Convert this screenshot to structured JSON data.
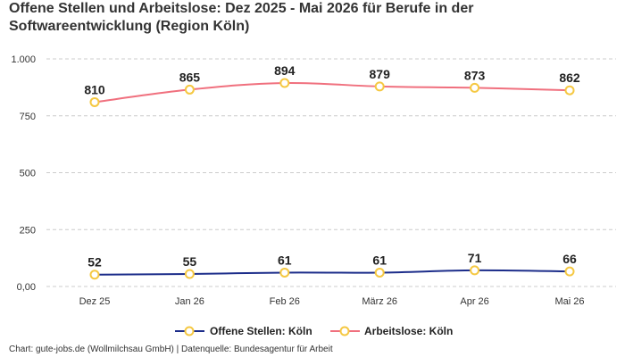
{
  "title": "Offene Stellen und Arbeitslose: Dez 2025 - Mai 2026 für Berufe in der Softwareentwicklung (Region Köln)",
  "footer": "Chart: gute-jobs.de (Wollmilchsau GmbH) | Datenquelle: Bundesagentur für Arbeit",
  "colors": {
    "offene_stellen": "#1c2d8a",
    "arbeitslose": "#f0707e",
    "marker_stroke": "#f5c842",
    "grid": "#cccccc"
  },
  "chart_data": {
    "type": "line",
    "title": "Offene Stellen und Arbeitslose: Dez 2025 - Mai 2026 für Berufe in der Softwareentwicklung (Region Köln)",
    "xlabel": "",
    "ylabel": "",
    "categories": [
      "Dez 25",
      "Jan 26",
      "Feb 26",
      "März 26",
      "Apr 26",
      "Mai 26"
    ],
    "ylim": [
      0,
      1000
    ],
    "yticks": [
      0,
      250,
      500,
      750,
      1000
    ],
    "ytick_labels": [
      "0,00",
      "250",
      "500",
      "750",
      "1.000"
    ],
    "grid": true,
    "legend_position": "bottom",
    "series": [
      {
        "name": "Offene Stellen: Köln",
        "values": [
          52,
          55,
          61,
          61,
          71,
          66
        ]
      },
      {
        "name": "Arbeitslose: Köln",
        "values": [
          810,
          865,
          894,
          879,
          873,
          862
        ]
      }
    ]
  }
}
